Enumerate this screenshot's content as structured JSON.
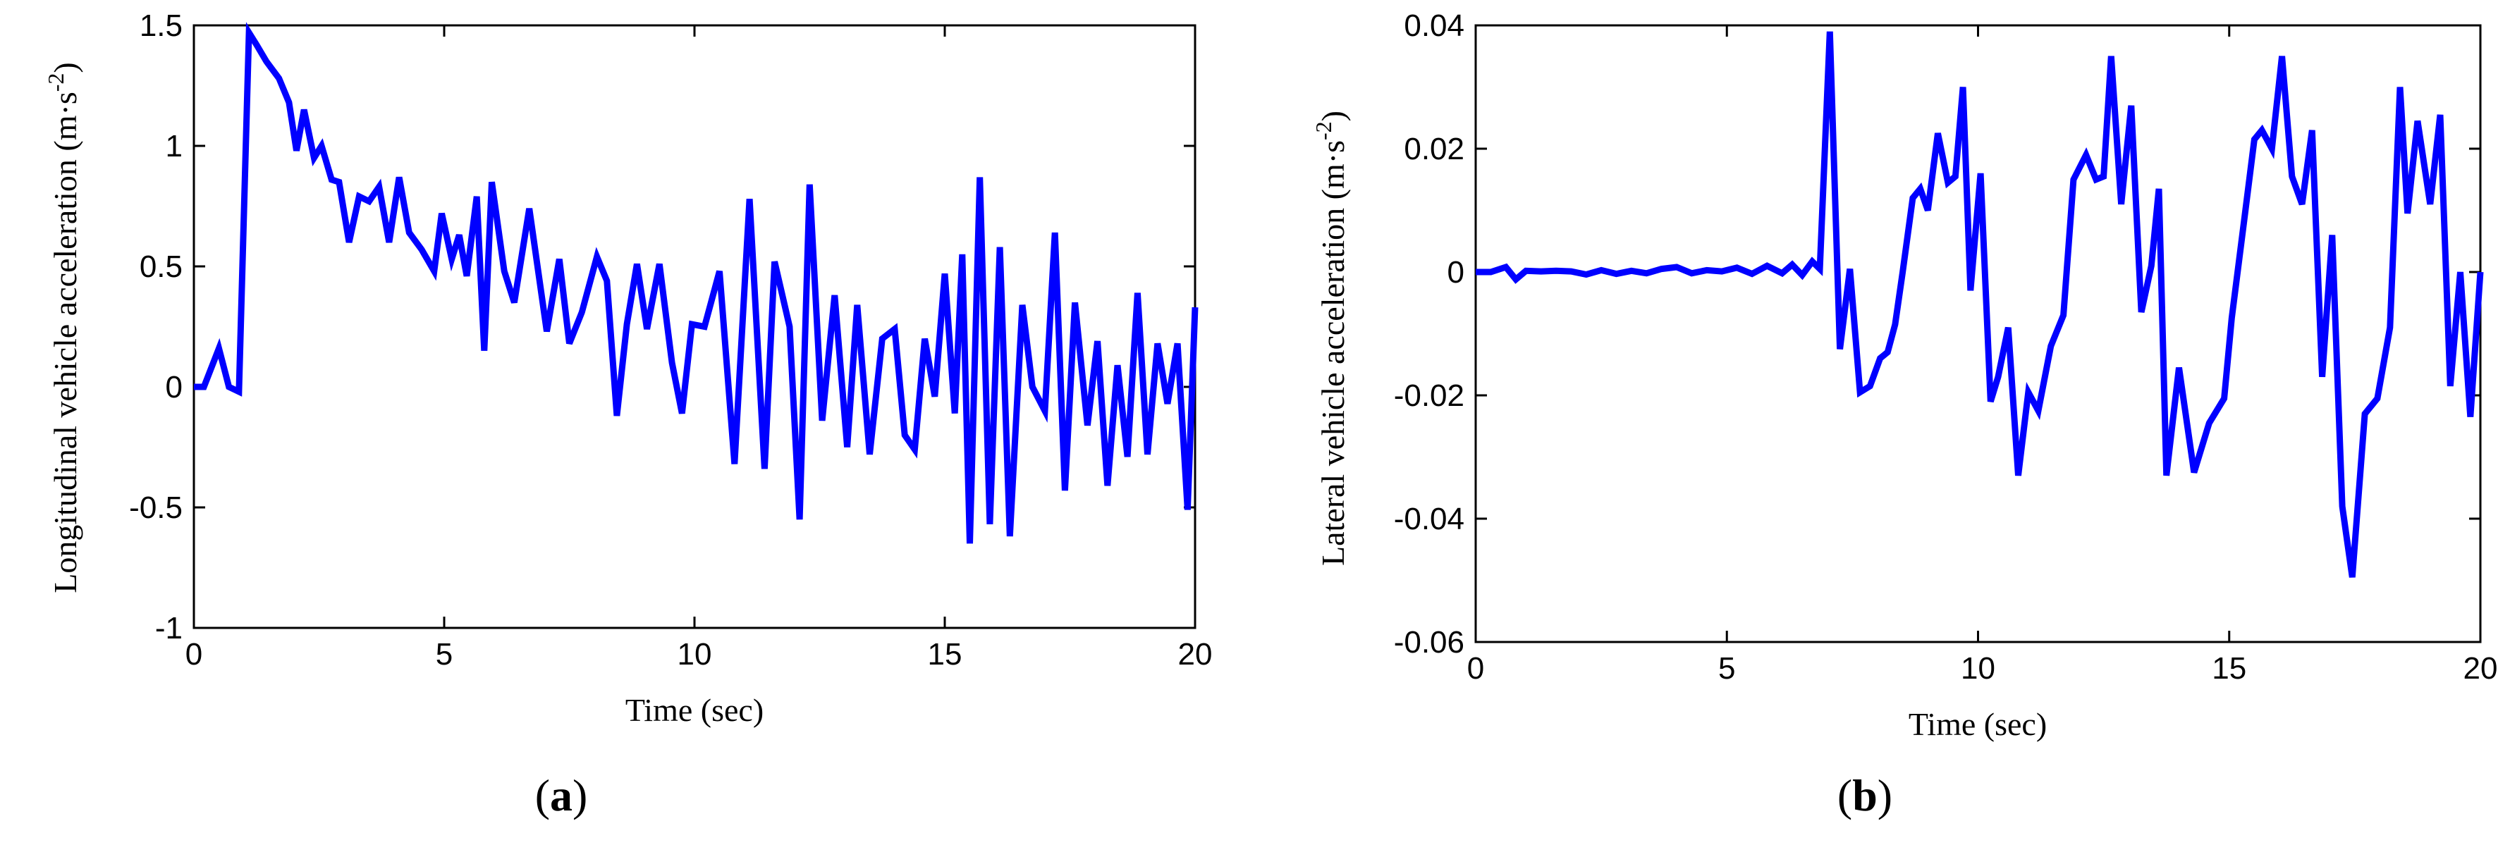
{
  "chart_data": [
    {
      "type": "line",
      "panel_label": "a",
      "xlabel": "Time (sec)",
      "ylabel_main": "Longitudinal vehicle acceleration (m",
      "ylabel_dot": "·",
      "ylabel_s": "s",
      "ylabel_exp": "-2",
      "ylabel_close": ")",
      "xlim": [
        0,
        20
      ],
      "ylim": [
        -1,
        1.5
      ],
      "xticks": [
        0,
        5,
        10,
        15,
        20
      ],
      "xtick_labels": [
        "0",
        "5",
        "10",
        "15",
        "20"
      ],
      "yticks": [
        1.5,
        1,
        0.5,
        0,
        -0.5,
        -1
      ],
      "ytick_labels": [
        "1.5",
        "1",
        "0.5",
        "0",
        "-0.5",
        "-1"
      ],
      "grid": false,
      "series": [
        {
          "color": "#0000ff",
          "x": [
            0,
            0.2,
            0.5,
            0.7,
            0.9,
            1.1,
            1.25,
            1.45,
            1.7,
            1.9,
            2.05,
            2.2,
            2.4,
            2.55,
            2.75,
            2.9,
            3.1,
            3.3,
            3.5,
            3.7,
            3.9,
            4.1,
            4.3,
            4.55,
            4.8,
            4.95,
            5.15,
            5.3,
            5.45,
            5.65,
            5.8,
            5.95,
            6.2,
            6.4,
            6.7,
            7.05,
            7.3,
            7.5,
            7.75,
            8.05,
            8.25,
            8.45,
            8.65,
            8.85,
            9.05,
            9.3,
            9.55,
            9.75,
            9.95,
            10.2,
            10.5,
            10.8,
            11.1,
            11.4,
            11.6,
            11.9,
            12.1,
            12.3,
            12.55,
            12.8,
            13.05,
            13.25,
            13.5,
            13.75,
            14.0,
            14.2,
            14.4,
            14.6,
            14.8,
            15.0,
            15.2,
            15.35,
            15.5,
            15.7,
            15.9,
            16.1,
            16.3,
            16.55,
            16.75,
            17.0,
            17.2,
            17.4,
            17.6,
            17.85,
            18.05,
            18.25,
            18.45,
            18.65,
            18.85,
            19.05,
            19.25,
            19.45,
            19.65,
            19.85,
            20
          ],
          "y": [
            0,
            0,
            0.16,
            0,
            -0.02,
            1.47,
            1.42,
            1.35,
            1.28,
            1.18,
            0.98,
            1.15,
            0.95,
            1.0,
            0.86,
            0.85,
            0.6,
            0.79,
            0.77,
            0.83,
            0.6,
            0.87,
            0.64,
            0.57,
            0.48,
            0.72,
            0.53,
            0.63,
            0.46,
            0.79,
            0.15,
            0.85,
            0.48,
            0.35,
            0.74,
            0.23,
            0.53,
            0.18,
            0.31,
            0.54,
            0.44,
            -0.12,
            0.26,
            0.51,
            0.24,
            0.51,
            0.1,
            -0.11,
            0.26,
            0.25,
            0.48,
            -0.32,
            0.78,
            -0.34,
            0.52,
            0.25,
            -0.55,
            0.84,
            -0.14,
            0.38,
            -0.25,
            0.34,
            -0.28,
            0.2,
            0.24,
            -0.2,
            -0.26,
            0.2,
            -0.04,
            0.47,
            -0.11,
            0.55,
            -0.65,
            0.87,
            -0.57,
            0.58,
            -0.62,
            0.34,
            0.0,
            -0.1,
            0.64,
            -0.43,
            0.35,
            -0.16,
            0.19,
            -0.41,
            0.09,
            -0.29,
            0.39,
            -0.28,
            0.18,
            -0.07,
            0.18,
            -0.51,
            0.33
          ]
        }
      ]
    },
    {
      "type": "line",
      "panel_label": "b",
      "xlabel": "Time (sec)",
      "ylabel_main": "Lateral vehicle acceleration (m",
      "ylabel_dot": "·",
      "ylabel_s": "s",
      "ylabel_exp": "-2",
      "ylabel_close": ")",
      "xlim": [
        0,
        20
      ],
      "ylim": [
        -0.06,
        0.04
      ],
      "xticks": [
        0,
        5,
        10,
        15,
        20
      ],
      "xtick_labels": [
        "0",
        "5",
        "10",
        "15",
        "20"
      ],
      "yticks": [
        0.04,
        0.02,
        0,
        -0.02,
        -0.04,
        -0.06
      ],
      "ytick_labels": [
        "0.04",
        "0.02",
        "0",
        "-0.02",
        "-0.04",
        "-0.06"
      ],
      "grid": false,
      "series": [
        {
          "color": "#0000ff",
          "x": [
            0,
            0.3,
            0.6,
            0.8,
            1.0,
            1.3,
            1.6,
            1.9,
            2.2,
            2.5,
            2.8,
            3.1,
            3.4,
            3.7,
            4.0,
            4.3,
            4.6,
            4.9,
            5.2,
            5.5,
            5.8,
            6.1,
            6.3,
            6.5,
            6.7,
            6.85,
            7.05,
            7.25,
            7.45,
            7.65,
            7.85,
            8.05,
            8.2,
            8.35,
            8.5,
            8.7,
            8.85,
            9.0,
            9.2,
            9.4,
            9.55,
            9.7,
            9.85,
            10.05,
            10.25,
            10.4,
            10.6,
            10.8,
            11.0,
            11.2,
            11.45,
            11.7,
            11.9,
            12.15,
            12.35,
            12.5,
            12.65,
            12.85,
            13.05,
            13.25,
            13.45,
            13.6,
            13.75,
            14.0,
            14.3,
            14.6,
            14.9,
            15.05,
            15.3,
            15.5,
            15.65,
            15.85,
            16.05,
            16.25,
            16.45,
            16.65,
            16.85,
            17.05,
            17.25,
            17.45,
            17.7,
            17.95,
            18.2,
            18.4,
            18.55,
            18.75,
            19.0,
            19.2,
            19.4,
            19.6,
            19.8,
            20
          ],
          "y": [
            0,
            0,
            0.0008,
            -0.0012,
            0.0002,
            0.0001,
            0.0002,
            0.0001,
            -0.0004,
            0.0003,
            -0.0003,
            0.0002,
            -0.0002,
            0.0005,
            0.0008,
            -0.0002,
            0.0003,
            0.0001,
            0.0007,
            -0.0003,
            0.001,
            -0.0002,
            0.0012,
            -0.0005,
            0.0017,
            0.0005,
            0.039,
            -0.0125,
            0.0005,
            -0.0195,
            -0.0185,
            -0.014,
            -0.013,
            -0.0085,
            0.0,
            0.012,
            0.0135,
            0.01,
            0.0225,
            0.0145,
            0.0155,
            0.03,
            -0.003,
            0.016,
            -0.021,
            -0.017,
            -0.009,
            -0.033,
            -0.0195,
            -0.0225,
            -0.012,
            -0.007,
            0.015,
            0.019,
            0.015,
            0.0155,
            0.035,
            0.011,
            0.027,
            -0.0065,
            0.001,
            0.0135,
            -0.033,
            -0.0155,
            -0.0325,
            -0.0245,
            -0.0205,
            -0.0075,
            0.0085,
            0.0215,
            0.023,
            0.02,
            0.035,
            0.0155,
            0.011,
            0.023,
            -0.017,
            0.006,
            -0.038,
            -0.0495,
            -0.023,
            -0.0205,
            -0.009,
            0.03,
            0.0095,
            0.0245,
            0.011,
            0.0255,
            -0.0185,
            0.0,
            -0.0235,
            0.0
          ]
        }
      ]
    }
  ]
}
